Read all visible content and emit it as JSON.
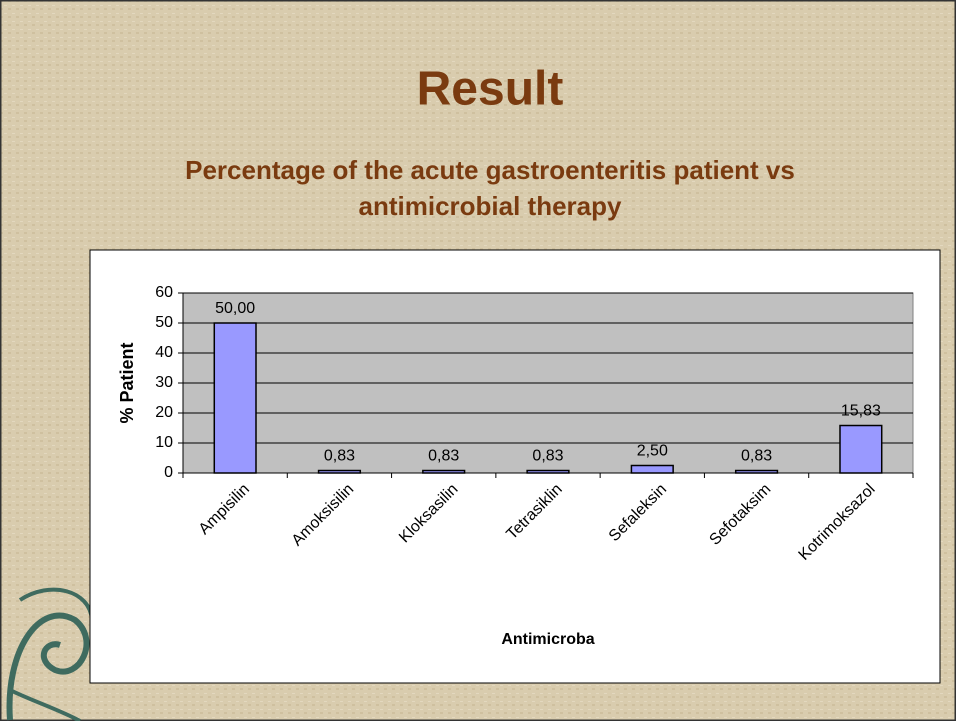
{
  "chart_data": {
    "type": "bar",
    "title": "Result",
    "subtitle": [
      "Percentage of the acute gastroenteritis patient vs",
      "antimicrobial therapy"
    ],
    "x_label": "Antimicroba",
    "y_label": "% Patient",
    "categories": [
      "Ampisilin",
      "Amoksisilin",
      "Kloksasilin",
      "Tetrasiklin",
      "Sefaleksin",
      "Sefotaksim",
      "Kotrimoksazol"
    ],
    "values": [
      50,
      0.83,
      0.83,
      0.83,
      2.5,
      0.83,
      15.83
    ],
    "value_labels": [
      "50,00",
      "0,83",
      "0,83",
      "0,83",
      "2,50",
      "0,83",
      "15,83"
    ],
    "color": "#9999ff",
    "ylim": [
      0,
      60
    ],
    "yticks": [
      0,
      10,
      20,
      30,
      40,
      50,
      60
    ],
    "grid": true
  }
}
